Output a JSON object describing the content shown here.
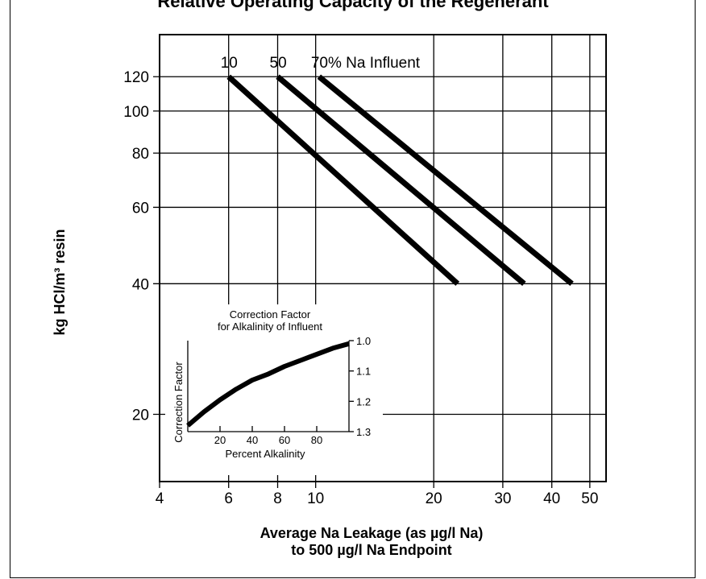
{
  "header": {
    "title": "Relative Operating Capacity of the Regenerant"
  },
  "chart_data": [
    {
      "type": "line",
      "title": "",
      "xlabel": [
        "Average Na Leakage (as µg/l Na)",
        "to 500 µg/l Na Endpoint"
      ],
      "ylabel": "kg HCl/m³ resin",
      "x_scale": "log",
      "y_scale": "log",
      "xlim": [
        4,
        55
      ],
      "ylim": [
        14,
        150
      ],
      "x_ticks": [
        4,
        6,
        8,
        10,
        20,
        30,
        40,
        50
      ],
      "y_ticks": [
        20,
        40,
        60,
        80,
        100,
        120
      ],
      "grid": true,
      "series_label_suffix": "% Na Influent",
      "series": [
        {
          "name": "10",
          "points": [
            [
              6,
              120
            ],
            [
              23,
              40
            ]
          ]
        },
        {
          "name": "50",
          "points": [
            [
              8,
              120
            ],
            [
              34,
              40
            ]
          ]
        },
        {
          "name": "70",
          "points": [
            [
              10.2,
              120
            ],
            [
              45,
              40
            ]
          ]
        }
      ]
    },
    {
      "type": "line",
      "title": [
        "Correction Factor",
        "for Alkalinity of Influent"
      ],
      "xlabel": "Percent Alkalinity",
      "ylabel": "Correction Factor",
      "xlim": [
        0,
        100
      ],
      "ylim": [
        1.0,
        1.3
      ],
      "x_ticks": [
        20,
        40,
        60,
        80
      ],
      "y_ticks": [
        "1.0",
        "1.1",
        "1.2",
        "1.3"
      ],
      "y_axis_side": "right",
      "series": [
        {
          "points": [
            [
              0,
              1.28
            ],
            [
              10,
              1.235
            ],
            [
              20,
              1.195
            ],
            [
              30,
              1.16
            ],
            [
              40,
              1.13
            ],
            [
              50,
              1.11
            ],
            [
              60,
              1.085
            ],
            [
              70,
              1.065
            ],
            [
              80,
              1.045
            ],
            [
              90,
              1.025
            ],
            [
              100,
              1.01
            ]
          ]
        }
      ]
    }
  ]
}
